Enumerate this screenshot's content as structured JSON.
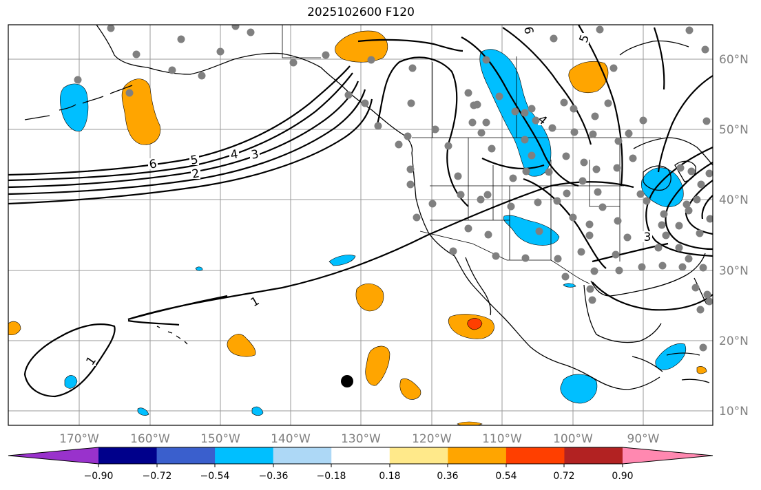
{
  "title": "2025102600 F120",
  "lat_labels": [
    "60°N",
    "50°N",
    "40°N",
    "30°N",
    "20°N",
    "10°N"
  ],
  "lon_labels": [
    "170°W",
    "160°W",
    "150°W",
    "140°W",
    "130°W",
    "120°W",
    "110°W",
    "100°W",
    "90°W"
  ],
  "colorbar": {
    "tick_labels": [
      "−0.90",
      "−0.72",
      "−0.54",
      "−0.36",
      "−0.18",
      "0.18",
      "0.36",
      "0.54",
      "0.72",
      "0.90"
    ],
    "colors": [
      "#9932cc",
      "#00008b",
      "#3a5fcd",
      "#00bfff",
      "#add8f6",
      "#ffffff",
      "#ffe98a",
      "#ffa500",
      "#ff3f00",
      "#b22222",
      "#ff88b0"
    ]
  },
  "contour_labels": [
    "1",
    "1",
    "2",
    "3",
    "4",
    "5",
    "6",
    "4",
    "5",
    "6",
    "3"
  ],
  "colors": {
    "negative_fill": "#00bfff",
    "positive_fill": "#ffa500",
    "strong_positive_fill": "#ff3f00",
    "station_dot": "#808080",
    "marker": "#000000"
  }
}
